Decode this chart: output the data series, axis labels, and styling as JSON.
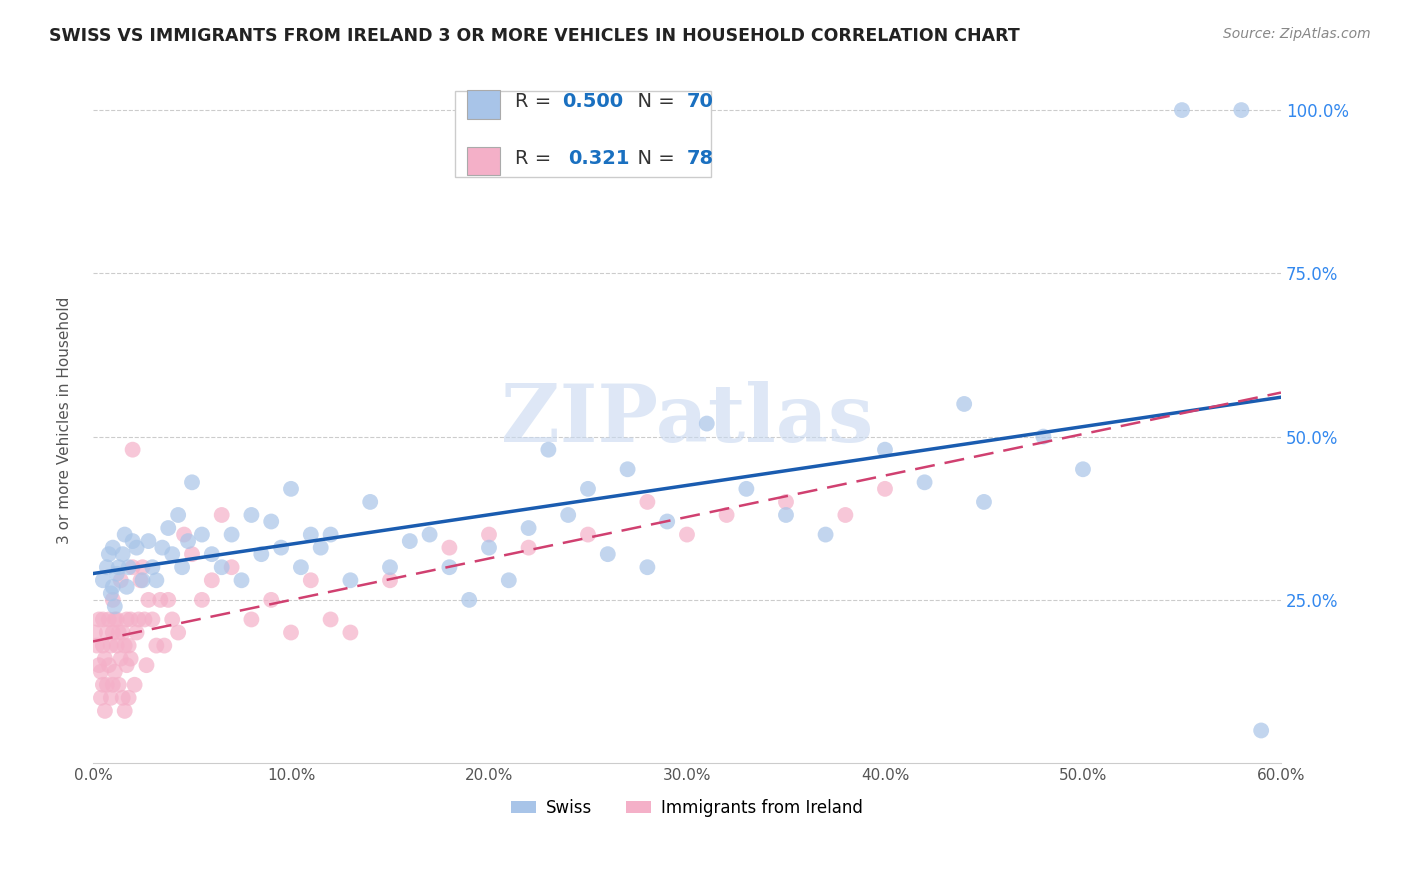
{
  "title": "SWISS VS IMMIGRANTS FROM IRELAND 3 OR MORE VEHICLES IN HOUSEHOLD CORRELATION CHART",
  "source": "Source: ZipAtlas.com",
  "ylabel": "3 or more Vehicles in Household",
  "xlim": [
    0.0,
    0.6
  ],
  "ylim": [
    0.0,
    1.05
  ],
  "x_tick_labels": [
    "0.0%",
    "10.0%",
    "20.0%",
    "30.0%",
    "40.0%",
    "50.0%",
    "60.0%"
  ],
  "x_tick_values": [
    0.0,
    0.1,
    0.2,
    0.3,
    0.4,
    0.5,
    0.6
  ],
  "y_tick_labels": [
    "25.0%",
    "50.0%",
    "75.0%",
    "100.0%"
  ],
  "y_tick_values": [
    0.25,
    0.5,
    0.75,
    1.0
  ],
  "swiss_color": "#a8c4e8",
  "ireland_color": "#f4b0c8",
  "swiss_line_color": "#1a5cb0",
  "ireland_line_color": "#d04070",
  "n_color": "#1a70c0",
  "r_color": "#1a70c0",
  "watermark": "ZIPatlas",
  "swiss_x": [
    0.005,
    0.007,
    0.008,
    0.009,
    0.01,
    0.01,
    0.011,
    0.012,
    0.013,
    0.015,
    0.016,
    0.017,
    0.018,
    0.02,
    0.022,
    0.025,
    0.028,
    0.03,
    0.032,
    0.035,
    0.038,
    0.04,
    0.043,
    0.045,
    0.048,
    0.05,
    0.055,
    0.06,
    0.065,
    0.07,
    0.075,
    0.08,
    0.085,
    0.09,
    0.095,
    0.1,
    0.105,
    0.11,
    0.115,
    0.12,
    0.13,
    0.14,
    0.15,
    0.16,
    0.17,
    0.18,
    0.19,
    0.2,
    0.21,
    0.22,
    0.23,
    0.24,
    0.25,
    0.26,
    0.27,
    0.28,
    0.29,
    0.31,
    0.33,
    0.35,
    0.37,
    0.4,
    0.42,
    0.44,
    0.45,
    0.48,
    0.5,
    0.55,
    0.58,
    0.59
  ],
  "swiss_y": [
    0.28,
    0.3,
    0.32,
    0.26,
    0.33,
    0.27,
    0.24,
    0.29,
    0.3,
    0.32,
    0.35,
    0.27,
    0.3,
    0.34,
    0.33,
    0.28,
    0.34,
    0.3,
    0.28,
    0.33,
    0.36,
    0.32,
    0.38,
    0.3,
    0.34,
    0.43,
    0.35,
    0.32,
    0.3,
    0.35,
    0.28,
    0.38,
    0.32,
    0.37,
    0.33,
    0.42,
    0.3,
    0.35,
    0.33,
    0.35,
    0.28,
    0.4,
    0.3,
    0.34,
    0.35,
    0.3,
    0.25,
    0.33,
    0.28,
    0.36,
    0.48,
    0.38,
    0.42,
    0.32,
    0.45,
    0.3,
    0.37,
    0.52,
    0.42,
    0.38,
    0.35,
    0.48,
    0.43,
    0.55,
    0.4,
    0.5,
    0.45,
    1.0,
    1.0,
    0.05
  ],
  "ireland_x": [
    0.001,
    0.002,
    0.003,
    0.003,
    0.004,
    0.004,
    0.005,
    0.005,
    0.005,
    0.006,
    0.006,
    0.007,
    0.007,
    0.008,
    0.008,
    0.009,
    0.009,
    0.01,
    0.01,
    0.01,
    0.011,
    0.011,
    0.012,
    0.012,
    0.013,
    0.013,
    0.014,
    0.014,
    0.015,
    0.015,
    0.016,
    0.016,
    0.017,
    0.017,
    0.018,
    0.018,
    0.019,
    0.019,
    0.02,
    0.02,
    0.021,
    0.022,
    0.023,
    0.024,
    0.025,
    0.026,
    0.027,
    0.028,
    0.03,
    0.032,
    0.034,
    0.036,
    0.038,
    0.04,
    0.043,
    0.046,
    0.05,
    0.055,
    0.06,
    0.065,
    0.07,
    0.08,
    0.09,
    0.1,
    0.11,
    0.12,
    0.13,
    0.15,
    0.18,
    0.2,
    0.22,
    0.25,
    0.28,
    0.3,
    0.32,
    0.35,
    0.38,
    0.4
  ],
  "ireland_y": [
    0.2,
    0.18,
    0.15,
    0.22,
    0.1,
    0.14,
    0.12,
    0.18,
    0.22,
    0.08,
    0.16,
    0.12,
    0.2,
    0.15,
    0.22,
    0.1,
    0.18,
    0.2,
    0.25,
    0.12,
    0.22,
    0.14,
    0.18,
    0.22,
    0.12,
    0.2,
    0.16,
    0.28,
    0.2,
    0.1,
    0.18,
    0.08,
    0.22,
    0.15,
    0.18,
    0.1,
    0.22,
    0.16,
    0.48,
    0.3,
    0.12,
    0.2,
    0.22,
    0.28,
    0.3,
    0.22,
    0.15,
    0.25,
    0.22,
    0.18,
    0.25,
    0.18,
    0.25,
    0.22,
    0.2,
    0.35,
    0.32,
    0.25,
    0.28,
    0.38,
    0.3,
    0.22,
    0.25,
    0.2,
    0.28,
    0.22,
    0.2,
    0.28,
    0.33,
    0.35,
    0.33,
    0.35,
    0.4,
    0.35,
    0.38,
    0.4,
    0.38,
    0.42
  ]
}
